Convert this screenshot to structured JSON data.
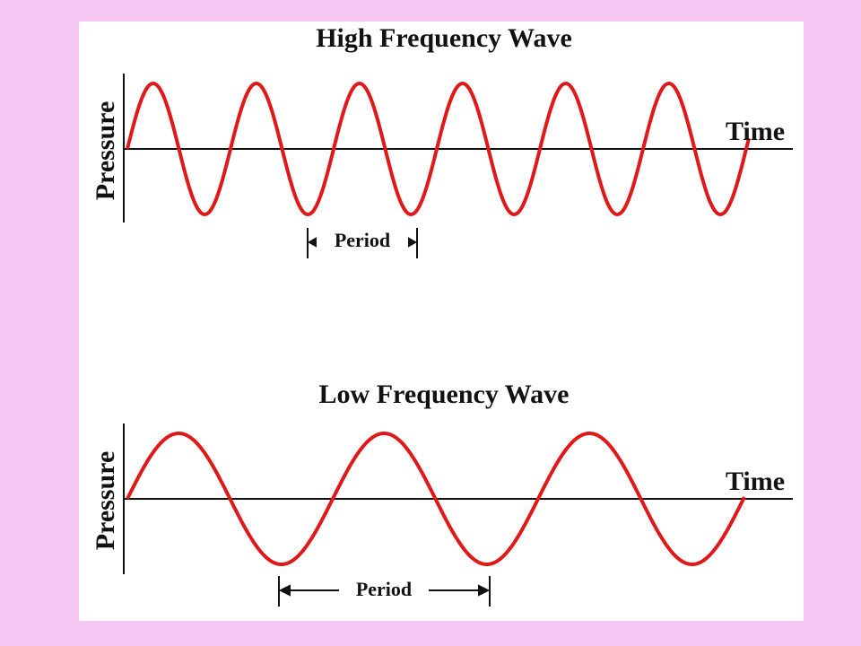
{
  "panels": [
    {
      "title": "High Frequency Wave",
      "y_label": "Pressure",
      "x_label": "Time",
      "period_label": "Period"
    },
    {
      "title": "Low Frequency Wave",
      "y_label": "Pressure",
      "x_label": "Time",
      "period_label": "Period"
    }
  ]
}
